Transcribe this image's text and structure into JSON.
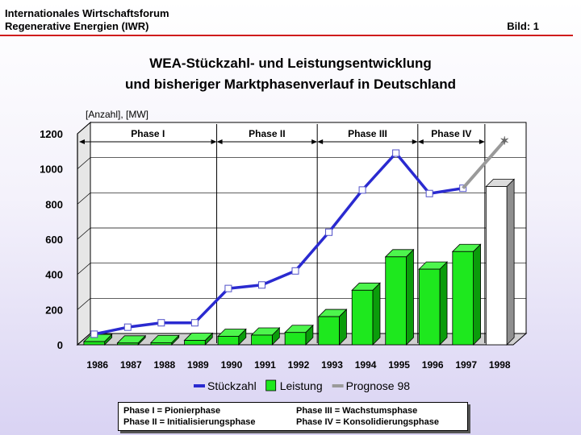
{
  "header": {
    "line1": "Internationales Wirtschaftsforum",
    "line2": "Regenerative Energien (IWR)",
    "page_label": "Bild: 1"
  },
  "title": {
    "line1": "WEA-Stückzahl- und Leistungsentwicklung",
    "line2": "und bisheriger Marktphasenverlauf in Deutschland"
  },
  "chart_data": {
    "type": "bar",
    "ylabel": "[Anzahl], [MW]",
    "ylim": [
      0,
      1200
    ],
    "yticks": [
      0,
      200,
      400,
      600,
      800,
      1000,
      1200
    ],
    "categories": [
      "1986",
      "1987",
      "1988",
      "1989",
      "1990",
      "1991",
      "1992",
      "1993",
      "1994",
      "1995",
      "1996",
      "1997",
      "1998"
    ],
    "series": [
      {
        "name": "Stückzahl",
        "kind": "line",
        "color": "#2a2ad0",
        "values": [
          60,
          100,
          125,
          125,
          320,
          340,
          420,
          640,
          880,
          1090,
          860,
          890,
          null
        ]
      },
      {
        "name": "Leistung",
        "kind": "bar",
        "color": "#1ee81e",
        "values": [
          18,
          10,
          12,
          25,
          48,
          55,
          70,
          160,
          310,
          500,
          430,
          530,
          null
        ]
      },
      {
        "name": "Prognose 98",
        "kind": "forecast",
        "color": "#9a9a9a",
        "line_from": {
          "x": "1997",
          "y": 890
        },
        "line_to": {
          "x": "1998",
          "y": 1160
        },
        "bar_value": 900
      }
    ],
    "phases": [
      {
        "label": "Phase I",
        "from": "1986",
        "to": "1989"
      },
      {
        "label": "Phase II",
        "from": "1989",
        "to": "1992"
      },
      {
        "label": "Phase III",
        "from": "1992",
        "to": "1995"
      },
      {
        "label": "Phase IV",
        "from": "1995",
        "to": "1997"
      }
    ],
    "grid": true,
    "legend_position": "bottom"
  },
  "footer_legend": {
    "p1": "Phase I  = Pionierphase",
    "p2": "Phase II = Initialisierungsphase",
    "p3": "Phase III = Wachstumsphase",
    "p4": "Phase IV = Konsolidierungsphase"
  }
}
